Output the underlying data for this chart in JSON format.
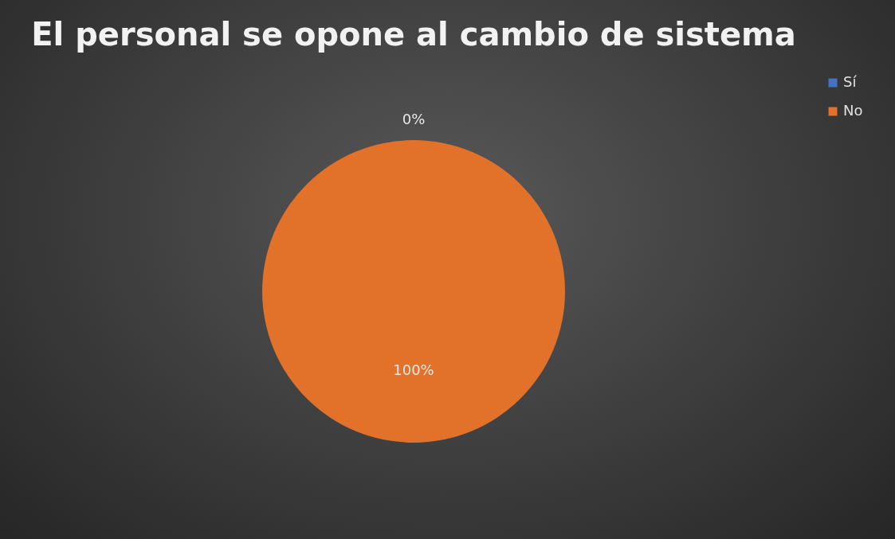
{
  "chart_data": {
    "type": "pie",
    "title": "El personal se opone al cambio de sistema",
    "categories": [
      "Sí",
      "No"
    ],
    "values": [
      0,
      100
    ],
    "colors": [
      "#4472c4",
      "#e2712a"
    ],
    "value_labels": [
      "0%",
      "100%"
    ],
    "legend": "right"
  }
}
